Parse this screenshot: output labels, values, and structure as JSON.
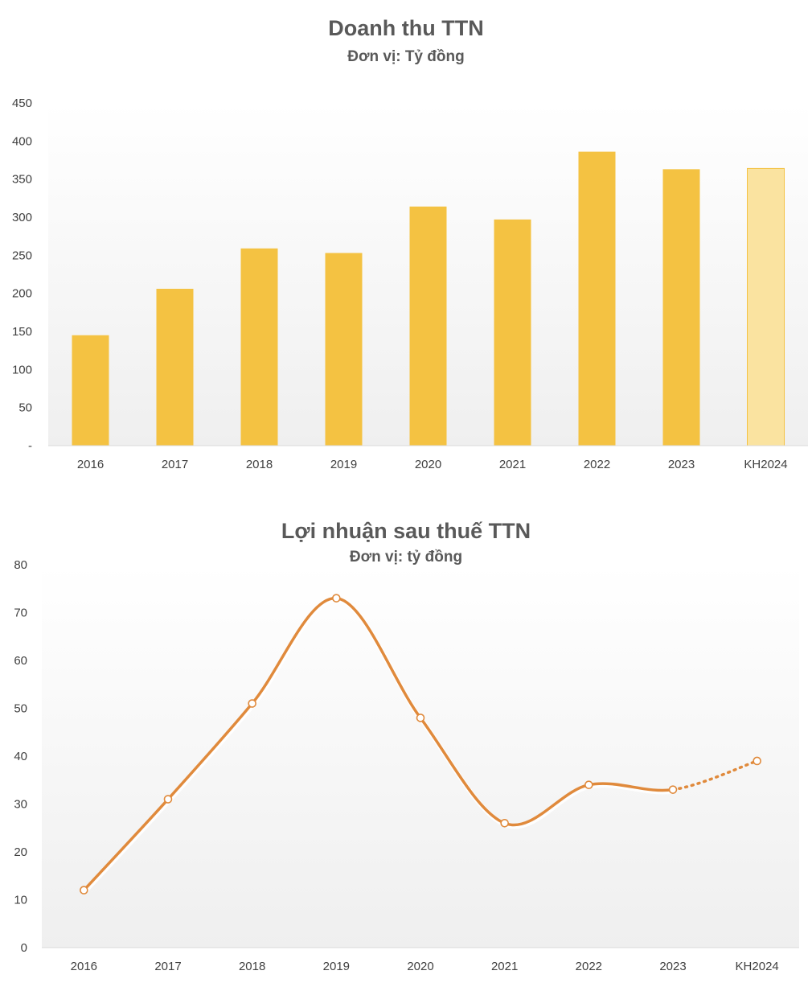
{
  "chart_data": [
    {
      "type": "bar",
      "title": "Doanh thu TTN",
      "subtitle": "Đơn vị: Tỷ đồng",
      "categories": [
        "2016",
        "2017",
        "2018",
        "2019",
        "2020",
        "2021",
        "2022",
        "2023",
        "KH2024"
      ],
      "values": [
        145,
        206,
        259,
        253,
        314,
        297,
        386,
        363,
        364
      ],
      "ylim": [
        0,
        450
      ],
      "yticks": [
        "-",
        "50",
        "100",
        "150",
        "200",
        "250",
        "300",
        "350",
        "400",
        "450"
      ],
      "colors": {
        "bar": "#F4C242",
        "bar_plan": "#FAE3A0",
        "bar_plan_border": "#F4C242"
      },
      "grid": false
    },
    {
      "type": "line",
      "title": "Lợi nhuận sau thuế TTN",
      "subtitle": "Đơn vị: tỷ đồng",
      "categories": [
        "2016",
        "2017",
        "2018",
        "2019",
        "2020",
        "2021",
        "2022",
        "2023",
        "KH2024"
      ],
      "values": [
        12,
        31,
        51,
        73,
        48,
        26,
        34,
        33,
        39
      ],
      "ylim": [
        0,
        80
      ],
      "yticks": [
        "0",
        "10",
        "20",
        "30",
        "40",
        "50",
        "60",
        "70",
        "80"
      ],
      "colors": {
        "line": "#E08A3C",
        "marker_fill": "#ffffff"
      },
      "plan_segment": "dotted",
      "grid": false
    }
  ]
}
